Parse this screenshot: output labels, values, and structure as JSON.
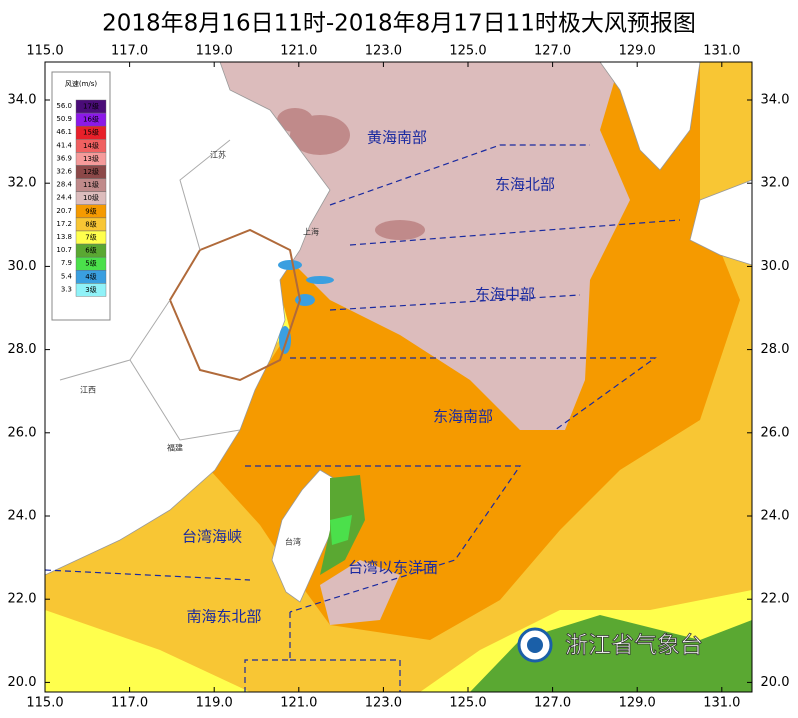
{
  "header": {
    "title": "2018年8月16日11时-2018年8月17日11时极大风预报图"
  },
  "map": {
    "xticks": [
      {
        "value": 115,
        "label": "115.0"
      },
      {
        "value": 117,
        "label": "117.0"
      },
      {
        "value": 119,
        "label": "119.0"
      },
      {
        "value": 121,
        "label": "121.0"
      },
      {
        "value": 123,
        "label": "123.0"
      },
      {
        "value": 125,
        "label": "125.0"
      },
      {
        "value": 127,
        "label": "127.0"
      },
      {
        "value": 129,
        "label": "129.0"
      },
      {
        "value": 131,
        "label": "131.0"
      }
    ],
    "yticks": [
      {
        "value": 20,
        "label": "20.0"
      },
      {
        "value": 22,
        "label": "22.0"
      },
      {
        "value": 24,
        "label": "24.0"
      },
      {
        "value": 26,
        "label": "26.0"
      },
      {
        "value": 28,
        "label": "28.0"
      },
      {
        "value": 30,
        "label": "30.0"
      },
      {
        "value": 32,
        "label": "32.0"
      },
      {
        "value": 34,
        "label": "34.0"
      }
    ],
    "regions": [
      "黄海南部",
      "东海北部",
      "东海中部",
      "东海南部",
      "台湾海峡",
      "台湾以东洋面",
      "南海东北部"
    ],
    "places": [
      "上海",
      "江苏",
      "江西",
      "福建",
      "台湾"
    ]
  },
  "legend": {
    "title": "风速(m/s)",
    "items": [
      {
        "speed": "56.0",
        "level": "17级",
        "color": "#4a0c78"
      },
      {
        "speed": "50.9",
        "level": "16级",
        "color": "#8c19e8"
      },
      {
        "speed": "46.1",
        "level": "15级",
        "color": "#e8202a"
      },
      {
        "speed": "41.4",
        "level": "14级",
        "color": "#f06060"
      },
      {
        "speed": "36.9",
        "level": "13级",
        "color": "#f59a9a"
      },
      {
        "speed": "32.6",
        "level": "12级",
        "color": "#8c4848"
      },
      {
        "speed": "28.4",
        "level": "11级",
        "color": "#c08a8a"
      },
      {
        "speed": "24.4",
        "level": "10级",
        "color": "#dcbcbc"
      },
      {
        "speed": "20.7",
        "level": "9级",
        "color": "#f59a00"
      },
      {
        "speed": "17.2",
        "level": "8级",
        "color": "#f8c634"
      },
      {
        "speed": "13.8",
        "level": "7级",
        "color": "#ffff4d"
      },
      {
        "speed": "10.7",
        "level": "6级",
        "color": "#5aa832"
      },
      {
        "speed": "7.9",
        "level": "5级",
        "color": "#4be04b"
      },
      {
        "speed": "5.4",
        "level": "4级",
        "color": "#3a9fe0"
      },
      {
        "speed": "3.3",
        "level": "3级",
        "color": "#90f2f8"
      }
    ]
  },
  "footer": {
    "agency": "浙江省气象台"
  }
}
